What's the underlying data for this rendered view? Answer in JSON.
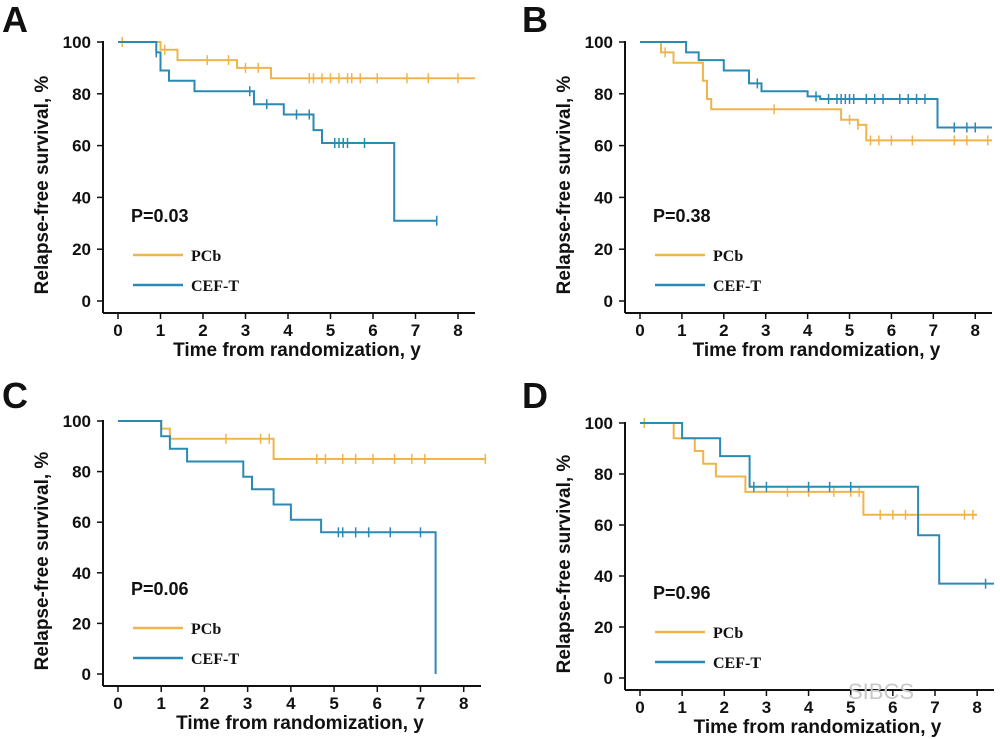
{
  "colors": {
    "pcb": "#f0b44c",
    "ceft": "#2a8ab4",
    "axis": "#111111"
  },
  "watermark": "SIBCS",
  "chart_data": [
    {
      "panel": "A",
      "type": "line",
      "title": "",
      "xlabel": "Time from randomization, y",
      "ylabel": "Relapse-free survival, %",
      "xlim": [
        0,
        8.4
      ],
      "ylim": [
        0,
        100
      ],
      "xticks": [
        0,
        1,
        2,
        3,
        4,
        5,
        6,
        7,
        8
      ],
      "yticks": [
        0,
        20,
        40,
        60,
        80,
        100
      ],
      "annotation": "P=0.03",
      "legend": [
        "PCb",
        "CEF-T"
      ],
      "series": [
        {
          "name": "PCb",
          "color_key": "pcb",
          "steps": [
            [
              0,
              100
            ],
            [
              1.0,
              97
            ],
            [
              1.4,
              93
            ],
            [
              2.8,
              90
            ],
            [
              3.6,
              86
            ],
            [
              8.4,
              86
            ]
          ],
          "censor": [
            0.1,
            1.1,
            2.1,
            2.6,
            3.0,
            3.3,
            4.5,
            4.6,
            4.8,
            5.0,
            5.2,
            5.4,
            5.5,
            5.7,
            6.1,
            6.8,
            7.3,
            8.0
          ]
        },
        {
          "name": "CEF-T",
          "color_key": "ceft",
          "steps": [
            [
              0,
              100
            ],
            [
              0.9,
              96
            ],
            [
              1.0,
              89
            ],
            [
              1.2,
              85
            ],
            [
              1.8,
              81
            ],
            [
              3.2,
              76
            ],
            [
              3.9,
              72
            ],
            [
              4.6,
              66
            ],
            [
              4.8,
              61
            ],
            [
              6.5,
              31
            ],
            [
              7.5,
              31
            ]
          ],
          "censor": [
            0.9,
            3.1,
            3.5,
            4.2,
            4.5,
            5.1,
            5.2,
            5.3,
            5.4,
            5.8,
            7.5
          ]
        }
      ]
    },
    {
      "panel": "B",
      "type": "line",
      "title": "",
      "xlabel": "Time from randomization, y",
      "ylabel": "Relapse-free survival, %",
      "xlim": [
        0,
        8.4
      ],
      "ylim": [
        0,
        100
      ],
      "xticks": [
        0,
        1,
        2,
        3,
        4,
        5,
        6,
        7,
        8
      ],
      "yticks": [
        0,
        20,
        40,
        60,
        80,
        100
      ],
      "annotation": "P=0.38",
      "legend": [
        "PCb",
        "CEF-T"
      ],
      "series": [
        {
          "name": "PCb",
          "color_key": "pcb",
          "steps": [
            [
              0,
              100
            ],
            [
              0.5,
              96
            ],
            [
              0.8,
              92
            ],
            [
              1.5,
              85
            ],
            [
              1.6,
              78
            ],
            [
              1.7,
              74
            ],
            [
              4.8,
              70
            ],
            [
              5.2,
              68
            ],
            [
              5.4,
              62
            ],
            [
              8.4,
              62
            ]
          ],
          "censor": [
            0.6,
            3.2,
            5.0,
            5.2,
            5.5,
            5.7,
            6.0,
            6.5,
            7.5,
            7.8,
            8.3
          ]
        },
        {
          "name": "CEF-T",
          "color_key": "ceft",
          "steps": [
            [
              0,
              100
            ],
            [
              1.1,
              96
            ],
            [
              1.4,
              93
            ],
            [
              2.0,
              89
            ],
            [
              2.6,
              84
            ],
            [
              2.9,
              81
            ],
            [
              4.0,
              79
            ],
            [
              4.3,
              78
            ],
            [
              7.1,
              67
            ],
            [
              8.4,
              67
            ]
          ],
          "censor": [
            2.8,
            4.2,
            4.5,
            4.7,
            4.8,
            4.9,
            5.0,
            5.1,
            5.4,
            5.6,
            5.8,
            6.2,
            6.4,
            6.6,
            6.8,
            7.5,
            7.8,
            8.0
          ]
        }
      ]
    },
    {
      "panel": "C",
      "type": "line",
      "title": "",
      "xlabel": "Time from randomization, y",
      "ylabel": "Relapse-free survival, %",
      "xlim": [
        0,
        8.4
      ],
      "ylim": [
        0,
        100
      ],
      "xticks": [
        0,
        1,
        2,
        3,
        4,
        5,
        6,
        7,
        8
      ],
      "yticks": [
        0,
        20,
        40,
        60,
        80,
        100
      ],
      "annotation": "P=0.06",
      "legend": [
        "PCb",
        "CEF-T"
      ],
      "series": [
        {
          "name": "PCb",
          "color_key": "pcb",
          "steps": [
            [
              0,
              100
            ],
            [
              1.0,
              97
            ],
            [
              1.2,
              93
            ],
            [
              3.6,
              85
            ],
            [
              8.5,
              85
            ]
          ],
          "censor": [
            1.0,
            2.5,
            3.3,
            3.5,
            4.6,
            4.8,
            5.2,
            5.5,
            5.9,
            6.4,
            6.8,
            7.1,
            8.5
          ]
        },
        {
          "name": "CEF-T",
          "color_key": "ceft",
          "steps": [
            [
              0,
              100
            ],
            [
              1.0,
              94
            ],
            [
              1.2,
              89
            ],
            [
              1.6,
              84
            ],
            [
              2.9,
              78
            ],
            [
              3.1,
              73
            ],
            [
              3.6,
              67
            ],
            [
              4.0,
              61
            ],
            [
              4.7,
              56
            ],
            [
              7.35,
              0
            ]
          ],
          "censor": [
            5.1,
            5.2,
            5.5,
            5.8,
            6.3,
            7.0
          ]
        }
      ]
    },
    {
      "panel": "D",
      "type": "line",
      "title": "",
      "xlabel": "Time from randomization, y",
      "ylabel": "Relapse-free survival, %",
      "xlim": [
        0,
        8.4
      ],
      "ylim": [
        0,
        100
      ],
      "xticks": [
        0,
        1,
        2,
        3,
        4,
        5,
        6,
        7,
        8
      ],
      "yticks": [
        0,
        20,
        40,
        60,
        80,
        100
      ],
      "annotation": "P=0.96",
      "legend": [
        "PCb",
        "CEF-T"
      ],
      "series": [
        {
          "name": "PCb",
          "color_key": "pcb",
          "steps": [
            [
              0,
              100
            ],
            [
              0.8,
              94
            ],
            [
              1.3,
              89
            ],
            [
              1.5,
              84
            ],
            [
              1.8,
              79
            ],
            [
              2.5,
              73
            ],
            [
              5.3,
              64
            ],
            [
              8.0,
              64
            ]
          ],
          "censor": [
            0.1,
            3.5,
            4.0,
            4.6,
            5.0,
            5.2,
            5.7,
            6.0,
            6.3,
            6.6,
            7.7,
            7.9
          ]
        },
        {
          "name": "CEF-T",
          "color_key": "ceft",
          "steps": [
            [
              0,
              100
            ],
            [
              1.0,
              94
            ],
            [
              1.9,
              87
            ],
            [
              2.6,
              75
            ],
            [
              6.6,
              56
            ],
            [
              7.1,
              37
            ],
            [
              8.4,
              37
            ]
          ],
          "censor": [
            2.7,
            3.0,
            4.0,
            4.5,
            5.0,
            8.2
          ]
        }
      ]
    }
  ]
}
